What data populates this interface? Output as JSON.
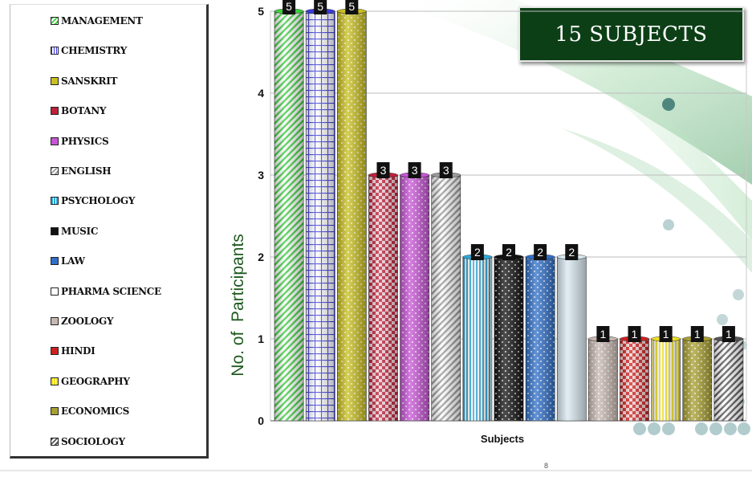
{
  "slide": {
    "title": "15 SUBJECTS",
    "page_number": "8"
  },
  "chart_data": {
    "type": "bar",
    "categories": [
      "MANAGEMENT",
      "CHEMISTRY",
      "SANSKRIT",
      "BOTANY",
      "PHYSICS",
      "ENGLISH",
      "PSYCHOLOGY",
      "MUSIC",
      "LAW",
      "PHARMA SCIENCE",
      "ZOOLOGY",
      "HINDI",
      "GEOGRAPHY",
      "ECONOMICS",
      "SOCIOLOGY"
    ],
    "values": [
      5,
      5,
      5,
      3,
      3,
      3,
      2,
      2,
      2,
      2,
      1,
      1,
      1,
      1,
      1
    ],
    "xlabel": "Subjects",
    "ylabel": "No. of  Participants",
    "ylim": [
      0,
      5
    ],
    "yticks": [
      0,
      1,
      2,
      3,
      4,
      5
    ],
    "grid": true,
    "legend_position": "left",
    "data_labels": true,
    "colors": [
      "#3fcf3f",
      "#3a3ae0",
      "#c9c020",
      "#c0203a",
      "#c855d6",
      "#9a9a9a",
      "#2fa8d8",
      "#111111",
      "#2f6fc8",
      "#d8e8f0",
      "#c8b8b0",
      "#d02020",
      "#f0e020",
      "#a8a030",
      "#555555"
    ],
    "patterns": [
      "diag",
      "grid",
      "dots",
      "check",
      "dots",
      "diag",
      "vert",
      "dots",
      "dots",
      "none",
      "dots",
      "check",
      "vert",
      "dots",
      "diag"
    ]
  }
}
